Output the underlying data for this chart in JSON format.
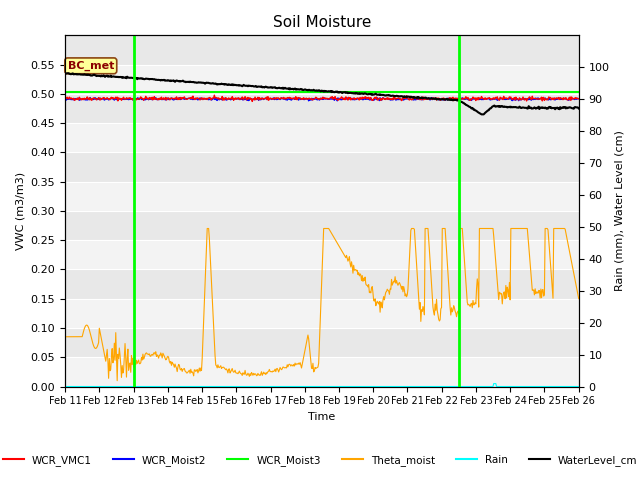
{
  "title": "Soil Moisture",
  "xlabel": "Time",
  "ylabel_left": "VWC (m3/m3)",
  "ylabel_right": "Rain (mm), Water Level (cm)",
  "ylim_left": [
    0.0,
    0.6
  ],
  "ylim_right": [
    0,
    110
  ],
  "background_color": "#e8e8e8",
  "annotation_text": "BC_met",
  "annotation_box_color": "#ffff99",
  "annotation_box_edge": "#8B4513",
  "x_tick_labels": [
    "Feb 11",
    "Feb 12",
    "Feb 13",
    "Feb 14",
    "Feb 15",
    "Feb 16",
    "Feb 17",
    "Feb 18",
    "Feb 19",
    "Feb 20",
    "Feb 21",
    "Feb 22",
    "Feb 23",
    "Feb 24",
    "Feb 25",
    "Feb 26"
  ],
  "legend_labels": [
    "WCR_VMC1",
    "WCR_Moist2",
    "WCR_Moist3",
    "Theta_moist",
    "Rain",
    "WaterLevel_cm"
  ],
  "legend_colors": [
    "red",
    "blue",
    "green",
    "orange",
    "cyan",
    "black"
  ],
  "vline_days": [
    2.0,
    11.5
  ],
  "yticks_left": [
    0.0,
    0.05,
    0.1,
    0.15,
    0.2,
    0.25,
    0.3,
    0.35,
    0.4,
    0.45,
    0.5,
    0.55
  ],
  "yticks_right": [
    0,
    10,
    20,
    30,
    40,
    50,
    60,
    70,
    80,
    90,
    100
  ]
}
